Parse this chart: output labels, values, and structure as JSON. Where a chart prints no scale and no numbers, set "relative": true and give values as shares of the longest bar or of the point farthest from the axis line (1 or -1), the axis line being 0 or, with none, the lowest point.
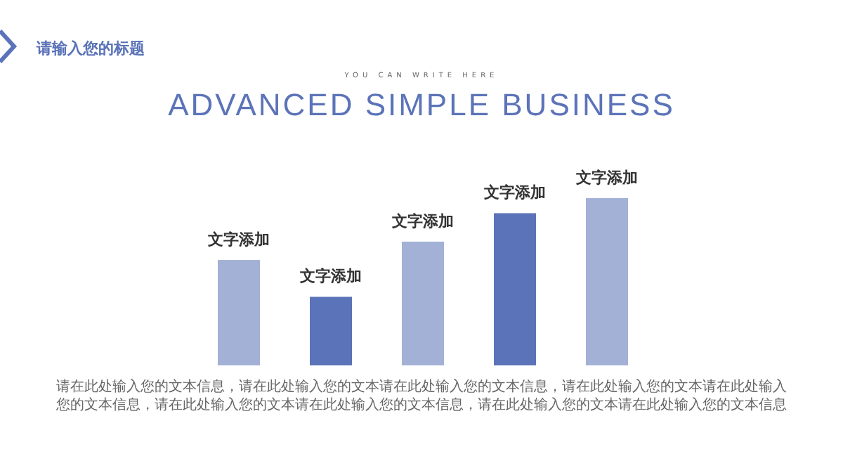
{
  "chart_data": {
    "type": "bar",
    "title": "ADVANCED SIMPLE BUSINESS",
    "subtitle": "YOU CAN WRITE HERE",
    "annotations": [
      "请输入您的标题",
      "请在此处输入您的文本信息，请在此处输入您的文本请在此处输入您的文本信息，请在此处输入您的文本请在此处输入您的文本信息，请在此处输入您的文本请在此处输入您的文本信息，请在此处输入您的文本请在此处输入您的文本信息"
    ],
    "categories": [
      "文字添加",
      "文字添加",
      "文字添加",
      "文字添加",
      "文字添加"
    ],
    "values": [
      0.63,
      0.41,
      0.74,
      0.91,
      1
    ],
    "colors": [
      "#a3b1d6",
      "#5b73b8",
      "#a3b1d6",
      "#5b73b8",
      "#a3b1d6"
    ],
    "relative": true
  }
}
